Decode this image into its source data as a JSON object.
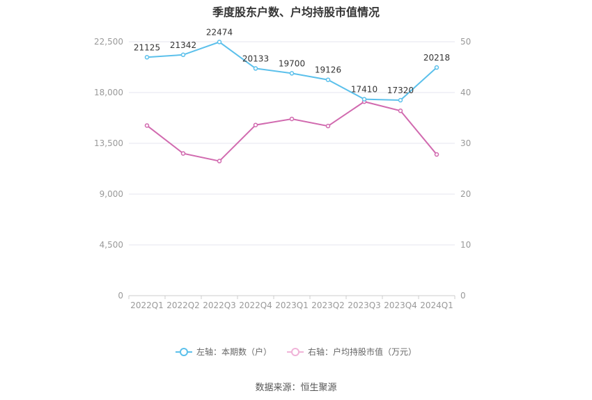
{
  "chart_data": {
    "type": "line",
    "title": "季度股东户数、户均持股市值情况",
    "categories": [
      "2022Q1",
      "2022Q2",
      "2022Q3",
      "2022Q4",
      "2023Q1",
      "2023Q2",
      "2023Q3",
      "2023Q4",
      "2024Q1"
    ],
    "series": [
      {
        "name": "左轴：本期数（户）",
        "axis": "left",
        "color": "#5bc0eb",
        "values": [
          21125,
          21342,
          22474,
          20133,
          19700,
          19126,
          17410,
          17320,
          20218
        ],
        "show_labels": true
      },
      {
        "name": "右轴：户均持股市值（万元）",
        "axis": "right",
        "color": "#d16aaf",
        "values": [
          33.5,
          28.0,
          26.5,
          33.6,
          34.8,
          33.4,
          38.2,
          36.4,
          27.8
        ],
        "show_labels": false
      }
    ],
    "y_left": {
      "min": 0,
      "max": 22500,
      "ticks": [
        "0",
        "4,500",
        "9,000",
        "13,500",
        "18,000",
        "22,500"
      ]
    },
    "y_right": {
      "min": 0,
      "max": 50,
      "ticks": [
        "0",
        "10",
        "20",
        "30",
        "40",
        "50"
      ]
    },
    "grid": true,
    "legend_position": "bottom"
  },
  "source_text": "数据来源：恒生聚源"
}
